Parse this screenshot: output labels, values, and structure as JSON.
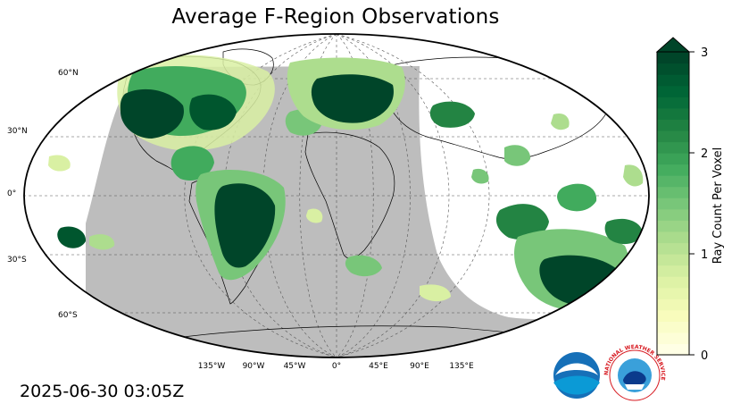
{
  "title": "Average F-Region Observations",
  "timestamp": "2025-06-30 03:05Z",
  "lat_labels": [
    "60°N",
    "30°N",
    "0°",
    "30°S",
    "60°S"
  ],
  "lon_labels": [
    "135°W",
    "90°W",
    "45°W",
    "0°",
    "45°E",
    "90°E",
    "135°E"
  ],
  "colorbar": {
    "label": "Ray Count Per Voxel",
    "ticks": [
      "0",
      "1",
      "2",
      "3"
    ],
    "min": 0,
    "max": 3,
    "extend": "max",
    "colors": [
      "#ffffe5",
      "#f7fcb9",
      "#d9f0a3",
      "#addd8e",
      "#78c679",
      "#41ab5d",
      "#238443",
      "#006837",
      "#004529"
    ]
  },
  "logos": {
    "noaa": "NOAA",
    "nws_ring": "NATIONAL WEATHER SERVICE"
  },
  "colors": {
    "night_shade": "#bdbdbd",
    "ocean": "#ffffff",
    "coast": "#000000"
  }
}
